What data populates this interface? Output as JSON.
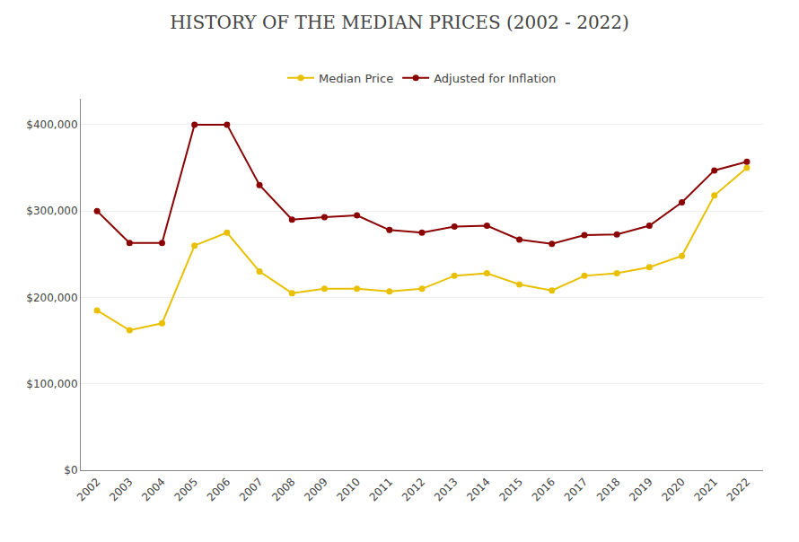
{
  "chart_data": {
    "type": "line",
    "title": "HISTORY OF THE MEDIAN PRICES (2002 - 2022)",
    "x": [
      2002,
      2003,
      2004,
      2005,
      2006,
      2007,
      2008,
      2009,
      2010,
      2011,
      2012,
      2013,
      2014,
      2015,
      2016,
      2017,
      2018,
      2019,
      2020,
      2021,
      2022
    ],
    "series": [
      {
        "name": "Median Price",
        "color": "#E8C000",
        "values": [
          185000,
          162000,
          170000,
          260000,
          275000,
          230000,
          205000,
          210000,
          210000,
          207000,
          210000,
          225000,
          228000,
          215000,
          208000,
          225000,
          228000,
          235000,
          248000,
          318000,
          350000
        ]
      },
      {
        "name": "Adjusted for Inflation",
        "color": "#8B0000",
        "values": [
          300000,
          263000,
          263000,
          400000,
          400000,
          330000,
          290000,
          293000,
          295000,
          278000,
          275000,
          282000,
          283000,
          267000,
          262000,
          272000,
          273000,
          283000,
          310000,
          347000,
          357000
        ]
      }
    ],
    "xlim": [
      2001.5,
      2022.5
    ],
    "xticks": [
      2002,
      2003,
      2004,
      2005,
      2006,
      2007,
      2008,
      2009,
      2010,
      2011,
      2012,
      2013,
      2014,
      2015,
      2016,
      2017,
      2018,
      2019,
      2020,
      2021,
      2022
    ],
    "ylim": [
      0,
      430000
    ],
    "yticks": [
      {
        "value": 0,
        "label": "$0"
      },
      {
        "value": 100000,
        "label": "$100,000"
      },
      {
        "value": 200000,
        "label": "$200,000"
      },
      {
        "value": 300000,
        "label": "$300,000"
      },
      {
        "value": 400000,
        "label": "$400,000"
      }
    ],
    "grid": true,
    "legend": "top",
    "marker": "circle",
    "line_style": "solid"
  }
}
